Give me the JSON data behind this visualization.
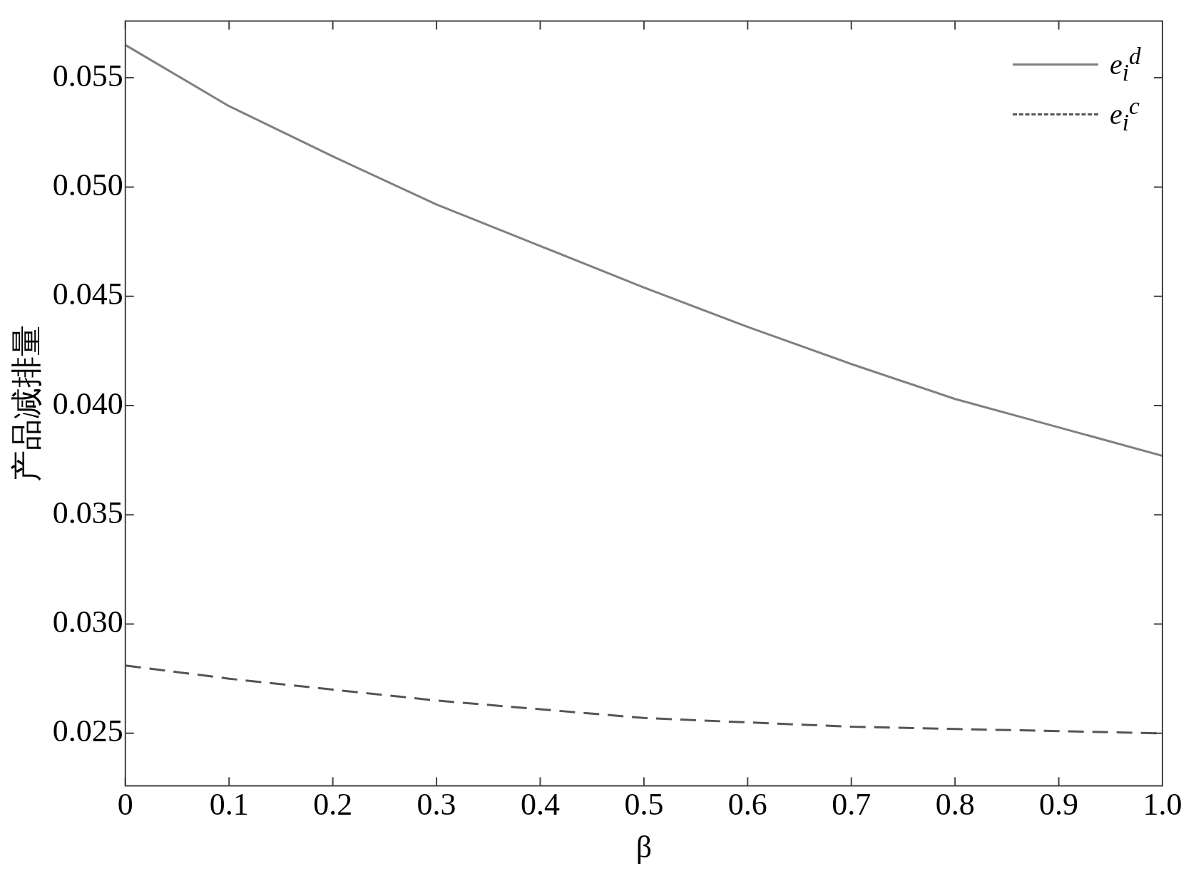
{
  "chart_data": {
    "type": "line",
    "xlabel": "β",
    "ylabel": "产品减排量",
    "x": [
      0,
      0.1,
      0.2,
      0.3,
      0.4,
      0.5,
      0.6,
      0.7,
      0.8,
      0.9,
      1.0
    ],
    "series": [
      {
        "name": "e$_{i}$$^{d}$",
        "color": "#808080",
        "line_style": "solid",
        "values": [
          0.0565,
          0.0537,
          0.0514,
          0.0492,
          0.0473,
          0.0454,
          0.0436,
          0.0419,
          0.0403,
          0.039,
          0.0377
        ]
      },
      {
        "name": "e$_{i}$$^{c}$",
        "color": "#555555",
        "line_style": "dashed",
        "values": [
          0.0281,
          0.0275,
          0.027,
          0.0265,
          0.0261,
          0.0257,
          0.0255,
          0.0253,
          0.0252,
          0.0251,
          0.025
        ]
      }
    ],
    "xlim": [
      0,
      1
    ],
    "xticks": [
      0,
      0.1,
      0.2,
      0.3,
      0.4,
      0.5,
      0.6,
      0.7,
      0.8,
      0.9,
      {
        "value": 1,
        "label": "1.0"
      }
    ],
    "ylim": [
      0.0226,
      0.0576
    ],
    "yticks": [
      0.025,
      {
        "value": 0.03,
        "label": "0.030"
      },
      0.035,
      {
        "value": 0.04,
        "label": "0.040"
      },
      0.045,
      {
        "value": 0.05,
        "label": "0.050"
      },
      0.055
    ],
    "grid": false,
    "legend": "top right",
    "marker": "none"
  }
}
